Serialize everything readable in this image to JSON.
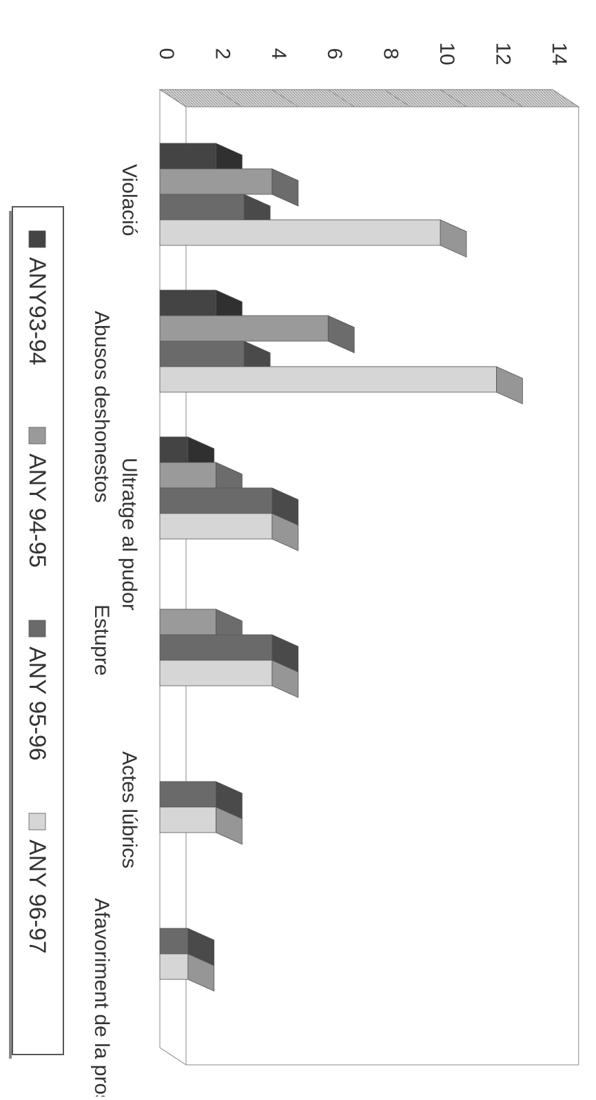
{
  "chart_data": {
    "type": "bar",
    "orientation": "rotated-90-clockwise",
    "categories": [
      "Violació",
      "Abusos deshonestos",
      "Ultratge al pudor",
      "Estupre",
      "Actes lúbrics",
      "Afavoriment de la prostit"
    ],
    "series": [
      {
        "name": "ANY93-94",
        "values": [
          2,
          2,
          1,
          0,
          0,
          0
        ]
      },
      {
        "name": "ANY 94-95",
        "values": [
          4,
          6,
          2,
          2,
          0,
          0
        ]
      },
      {
        "name": "ANY 95-96",
        "values": [
          3,
          3,
          4,
          4,
          2,
          1
        ]
      },
      {
        "name": "ANY 96-97",
        "values": [
          10,
          12,
          4,
          4,
          2,
          1
        ]
      }
    ],
    "ylim": [
      0,
      14
    ],
    "yticks": [
      "0",
      "2",
      "4",
      "6",
      "8",
      "10",
      "12",
      "14"
    ],
    "grid": false,
    "legend_position": "bottom",
    "colors": {
      "ANY93-94": "#444444",
      "ANY 94-95": "#9a9a9a",
      "ANY 95-96": "#6a6a6a",
      "ANY 96-97": "#d6d6d6",
      "floor": "#c8c8c8"
    }
  }
}
